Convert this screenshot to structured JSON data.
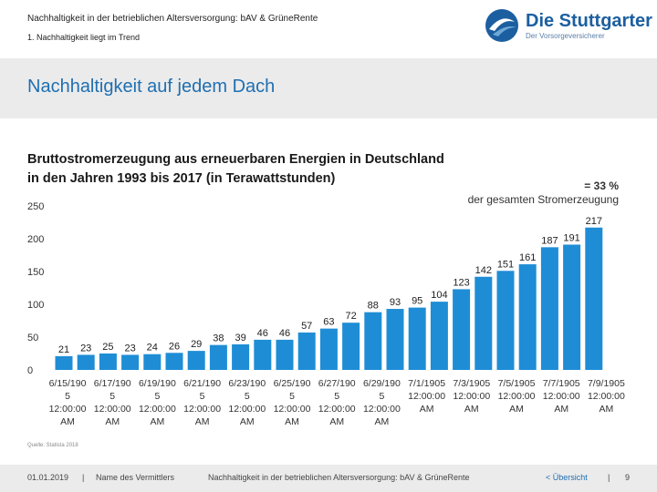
{
  "header": {
    "line1": "Nachhaltigkeit in der betrieblichen Altersversorgung: bAV & GrüneRente",
    "line2": "1. Nachhaltigkeit liegt im Trend"
  },
  "logo": {
    "name": "Die Stuttgarter",
    "tagline": "Der Vorsorgeversicherer",
    "colors": {
      "primary": "#1c5fa0",
      "light": "#6fa8d6"
    }
  },
  "band_title": "Nachhaltigkeit auf jedem Dach",
  "subtitle_lines": [
    "Bruttostromerzeugung aus erneuerbaren Energien in Deutschland",
    "in den Jahren 1993 bis 2017 (in Terawattstunden)"
  ],
  "note": {
    "pct": "= 33 %",
    "text": "der gesamten Stromerzeugung"
  },
  "source": "Quelle: Statista 2018",
  "footer": {
    "date": "01.01.2019",
    "sep1": "|",
    "agent": "Name des Vermittlers",
    "title": "Nachhaltigkeit in der betrieblichen Altersversorgung: bAV & GrüneRente",
    "back": "< Übersicht",
    "sep2": "|",
    "page": "9"
  },
  "chart_data": {
    "type": "bar",
    "ylim": [
      0,
      250
    ],
    "yticks": [
      0,
      50,
      100,
      150,
      200,
      250
    ],
    "grid": false,
    "bar_color": "#1f8dd6",
    "values": [
      21,
      23,
      25,
      23,
      24,
      26,
      29,
      38,
      39,
      46,
      46,
      57,
      63,
      72,
      88,
      93,
      95,
      104,
      123,
      142,
      151,
      161,
      187,
      191,
      217
    ],
    "x_tick_labels": [
      [
        "6/15/190",
        "5",
        "12:00:00",
        "AM"
      ],
      [
        "6/17/190",
        "5",
        "12:00:00",
        "AM"
      ],
      [
        "6/19/190",
        "5",
        "12:00:00",
        "AM"
      ],
      [
        "6/21/190",
        "5",
        "12:00:00",
        "AM"
      ],
      [
        "6/23/190",
        "5",
        "12:00:00",
        "AM"
      ],
      [
        "6/25/190",
        "5",
        "12:00:00",
        "AM"
      ],
      [
        "6/27/190",
        "5",
        "12:00:00",
        "AM"
      ],
      [
        "6/29/190",
        "5",
        "12:00:00",
        "AM"
      ],
      [
        "7/1/1905",
        "12:00:00",
        "AM"
      ],
      [
        "7/3/1905",
        "12:00:00",
        "AM"
      ],
      [
        "7/5/1905",
        "12:00:00",
        "AM"
      ],
      [
        "7/7/1905",
        "12:00:00",
        "AM"
      ],
      [
        "7/9/1905",
        "12:00:00",
        "AM"
      ]
    ]
  }
}
